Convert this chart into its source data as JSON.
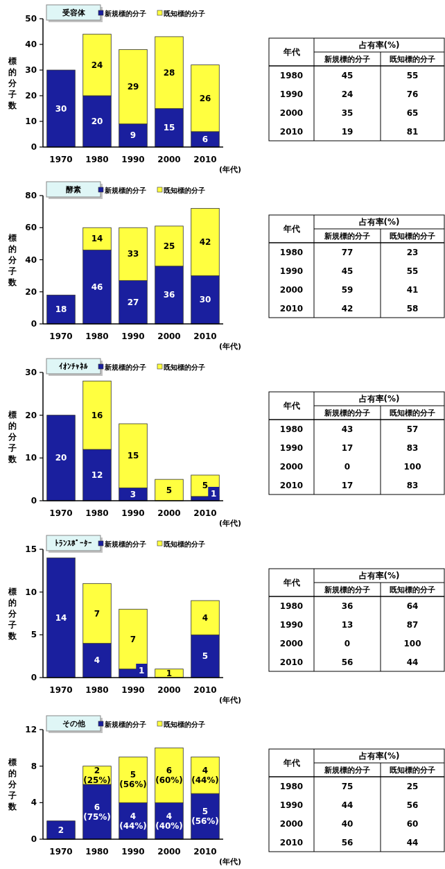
{
  "chart_data": [
    {
      "type": "bar",
      "stacked": true,
      "title": "受容体",
      "ylabel": "標的分子数",
      "xlabel": "(年代)",
      "legend": "top right",
      "categories": [
        "1970",
        "1980",
        "1990",
        "2000",
        "2010"
      ],
      "ylim": [
        0,
        50
      ],
      "yticks": [
        0,
        10,
        20,
        30,
        40,
        50
      ],
      "series": [
        {
          "name": "新規標的分子",
          "color": "#1a1f9e",
          "values": [
            30,
            20,
            9,
            15,
            6
          ],
          "value_labels": [
            "30",
            "20",
            "9",
            "15",
            "6"
          ]
        },
        {
          "name": "既知標的分子",
          "color": "#ffff40",
          "values": [
            null,
            24,
            29,
            28,
            26
          ],
          "value_labels": [
            null,
            "24",
            "29",
            "28",
            "26"
          ]
        }
      ]
    },
    {
      "type": "heatmap",
      "title": "占有率(%)",
      "ylabel": "年代",
      "categories": [
        "新規標的分子",
        "既知標的分子"
      ],
      "y_categories": [
        "1980",
        "1990",
        "2000",
        "2010"
      ],
      "data_labels": true,
      "cells": [
        [
          45,
          55
        ],
        [
          24,
          76
        ],
        [
          35,
          65
        ],
        [
          19,
          81
        ]
      ]
    },
    {
      "type": "bar",
      "stacked": true,
      "title": "酵素",
      "ylabel": "標的分子数",
      "xlabel": "(年代)",
      "legend": "top right",
      "categories": [
        "1970",
        "1980",
        "1990",
        "2000",
        "2010"
      ],
      "ylim": [
        0,
        80
      ],
      "yticks": [
        0,
        20,
        40,
        60,
        80
      ],
      "series": [
        {
          "name": "新規標的分子",
          "color": "#1a1f9e",
          "values": [
            18,
            46,
            27,
            36,
            30
          ],
          "value_labels": [
            "18",
            "46",
            "27",
            "36",
            "30"
          ]
        },
        {
          "name": "既知標的分子",
          "color": "#ffff40",
          "values": [
            null,
            14,
            33,
            25,
            42
          ],
          "value_labels": [
            null,
            "14",
            "33",
            "25",
            "42"
          ]
        }
      ]
    },
    {
      "type": "heatmap",
      "title": "占有率(%)",
      "ylabel": "年代",
      "categories": [
        "新規標的分子",
        "既知標的分子"
      ],
      "y_categories": [
        "1980",
        "1990",
        "2000",
        "2010"
      ],
      "data_labels": true,
      "cells": [
        [
          77,
          23
        ],
        [
          45,
          55
        ],
        [
          59,
          41
        ],
        [
          42,
          58
        ]
      ]
    },
    {
      "type": "bar",
      "stacked": true,
      "title": "ｲｵﾝﾁｬﾈﾙ",
      "ylabel": "標的分子数",
      "xlabel": "(年代)",
      "legend": "top right",
      "categories": [
        "1970",
        "1980",
        "1990",
        "2000",
        "2010"
      ],
      "ylim": [
        0,
        30
      ],
      "yticks": [
        0,
        10,
        20,
        30
      ],
      "series": [
        {
          "name": "新規標的分子",
          "color": "#1a1f9e",
          "values": [
            20,
            12,
            3,
            0,
            1
          ],
          "value_labels": [
            "20",
            "12",
            "3",
            null,
            "1"
          ]
        },
        {
          "name": "既知標的分子",
          "color": "#ffff40",
          "values": [
            null,
            16,
            15,
            5,
            5
          ],
          "value_labels": [
            null,
            "16",
            "15",
            "5",
            "5"
          ]
        }
      ]
    },
    {
      "type": "heatmap",
      "title": "占有率(%)",
      "ylabel": "年代",
      "categories": [
        "新規標的分子",
        "既知標的分子"
      ],
      "y_categories": [
        "1980",
        "1990",
        "2000",
        "2010"
      ],
      "data_labels": true,
      "cells": [
        [
          43,
          57
        ],
        [
          17,
          83
        ],
        [
          0,
          100
        ],
        [
          17,
          83
        ]
      ]
    },
    {
      "type": "bar",
      "stacked": true,
      "title": "ﾄﾗﾝｽﾎﾟｰﾀｰ",
      "ylabel": "標的分子数",
      "xlabel": "(年代)",
      "legend": "top right",
      "categories": [
        "1970",
        "1980",
        "1990",
        "2000",
        "2010"
      ],
      "ylim": [
        0,
        15
      ],
      "yticks": [
        0,
        5,
        10,
        15
      ],
      "series": [
        {
          "name": "新規標的分子",
          "color": "#1a1f9e",
          "values": [
            14,
            4,
            1,
            0,
            5
          ],
          "value_labels": [
            "14",
            "4",
            "1",
            null,
            "5"
          ]
        },
        {
          "name": "既知標的分子",
          "color": "#ffff40",
          "values": [
            null,
            7,
            7,
            1,
            4
          ],
          "value_labels": [
            null,
            "7",
            "7",
            "1",
            "4"
          ]
        }
      ]
    },
    {
      "type": "heatmap",
      "title": "占有率(%)",
      "ylabel": "年代",
      "categories": [
        "新規標的分子",
        "既知標的分子"
      ],
      "y_categories": [
        "1980",
        "1990",
        "2000",
        "2010"
      ],
      "data_labels": true,
      "cells": [
        [
          36,
          64
        ],
        [
          13,
          87
        ],
        [
          0,
          100
        ],
        [
          56,
          44
        ]
      ]
    },
    {
      "type": "bar",
      "stacked": true,
      "title": "その他",
      "ylabel": "標的分子数",
      "xlabel": "(年代)",
      "legend": "top right",
      "categories": [
        "1970",
        "1980",
        "1990",
        "2000",
        "2010"
      ],
      "ylim": [
        0,
        12
      ],
      "yticks": [
        0,
        4,
        8,
        12
      ],
      "series": [
        {
          "name": "新規標的分子",
          "color": "#1a1f9e",
          "values": [
            2,
            6,
            4,
            4,
            5
          ],
          "value_labels": [
            "2",
            "6\n(75%)",
            "4\n(44%)",
            "4\n(40%)",
            "5\n(56%)"
          ]
        },
        {
          "name": "既知標的分子",
          "color": "#ffff40",
          "values": [
            null,
            2,
            5,
            6,
            4
          ],
          "value_labels": [
            null,
            "2\n(25%)",
            "5\n(56%)",
            "6\n(60%)",
            "4\n(44%)"
          ]
        }
      ]
    },
    {
      "type": "heatmap",
      "title": "占有率(%)",
      "ylabel": "年代",
      "categories": [
        "新規標的分子",
        "既知標的分子"
      ],
      "y_categories": [
        "1980",
        "1990",
        "2000",
        "2010"
      ],
      "data_labels": true,
      "cells": [
        [
          75,
          25
        ],
        [
          44,
          56
        ],
        [
          40,
          60
        ],
        [
          56,
          44
        ]
      ]
    }
  ]
}
